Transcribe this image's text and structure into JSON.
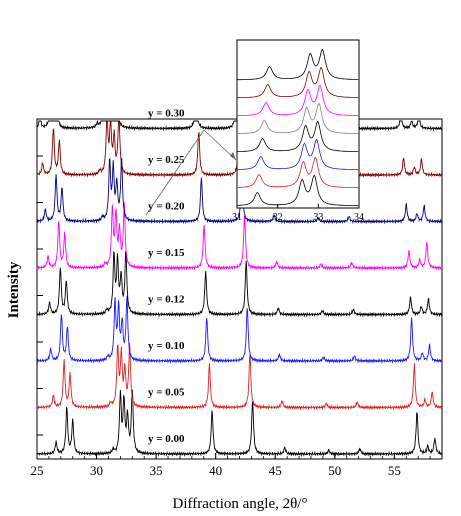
{
  "chart_data": {
    "type": "line",
    "title": "",
    "xlabel": "Diffraction angle, 2θ/°",
    "ylabel": "Intensity",
    "xlim": [
      25,
      59
    ],
    "x_ticks": [
      25,
      30,
      35,
      40,
      45,
      50,
      55
    ],
    "grid": false,
    "legend": "inline labels",
    "peaks_base": [
      {
        "x": 26.6,
        "h": 0.9
      },
      {
        "x": 27.5,
        "h": 3.6
      },
      {
        "x": 28.0,
        "h": 2.6
      },
      {
        "x": 31.4,
        "h": 0.3
      },
      {
        "x": 32.0,
        "h": 4.5
      },
      {
        "x": 32.3,
        "h": 4.0
      },
      {
        "x": 32.6,
        "h": 2.8
      },
      {
        "x": 33.0,
        "h": 4.8
      },
      {
        "x": 39.7,
        "h": 3.4
      },
      {
        "x": 43.1,
        "h": 4.2
      },
      {
        "x": 45.8,
        "h": 0.5
      },
      {
        "x": 49.5,
        "h": 0.3
      },
      {
        "x": 52.1,
        "h": 0.4
      },
      {
        "x": 56.9,
        "h": 3.3
      },
      {
        "x": 57.8,
        "h": 0.6
      },
      {
        "x": 58.4,
        "h": 1.2
      }
    ],
    "series": [
      {
        "name": "y = 0.00",
        "y": 0.0,
        "color": "#000000"
      },
      {
        "name": "y = 0.05",
        "y": 0.05,
        "color": "#e02020"
      },
      {
        "name": "y = 0.10",
        "y": 0.1,
        "color": "#1a1aff"
      },
      {
        "name": "y = 0.12",
        "y": 0.12,
        "color": "#000000"
      },
      {
        "name": "y = 0.15",
        "y": 0.15,
        "color": "#ff00ff"
      },
      {
        "name": "y = 0.20",
        "y": 0.2,
        "color": "#000080"
      },
      {
        "name": "y = 0.25",
        "y": 0.25,
        "color": "#800000"
      },
      {
        "name": "y = 0.30",
        "y": 0.3,
        "color": "#000000"
      }
    ],
    "inset": {
      "xlim": [
        31,
        34
      ],
      "x_ticks": [
        31,
        32,
        33,
        34
      ],
      "colors": [
        "#000000",
        "#800000",
        "#ff00ff",
        "#808080",
        "#000000",
        "#1a1aff",
        "#e02020",
        "#000000"
      ]
    }
  }
}
